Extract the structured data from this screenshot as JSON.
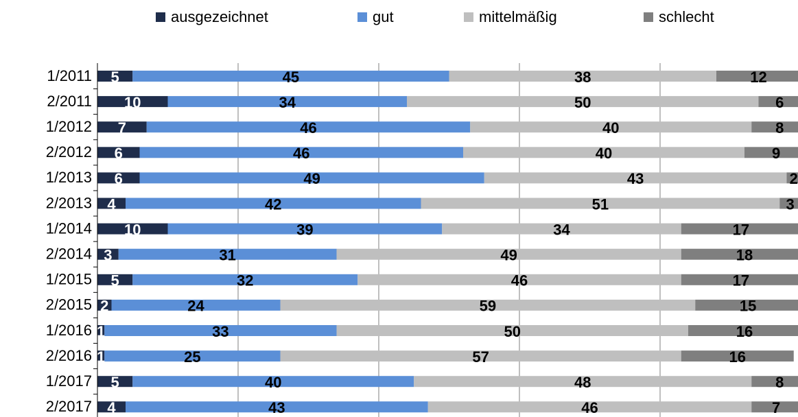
{
  "chart_data": {
    "type": "stacked-barh",
    "categories": [
      "1/2011",
      "2/2011",
      "1/2012",
      "2/2012",
      "1/2013",
      "2/2013",
      "1/2014",
      "2/2014",
      "1/2015",
      "2/2015",
      "1/2016",
      "2/2016",
      "1/2017",
      "2/2017"
    ],
    "series": [
      {
        "name": "ausgezeichnet",
        "color": "#1f2d4b",
        "values": [
          5,
          10,
          7,
          6,
          6,
          4,
          10,
          3,
          5,
          2,
          1,
          1,
          5,
          4
        ]
      },
      {
        "name": "gut",
        "color": "#5b8fd7",
        "values": [
          45,
          34,
          46,
          46,
          49,
          42,
          39,
          31,
          32,
          24,
          33,
          25,
          40,
          43
        ]
      },
      {
        "name": "mittelmäßig",
        "color": "#bfbfbf",
        "values": [
          38,
          50,
          40,
          40,
          43,
          51,
          34,
          49,
          46,
          59,
          50,
          57,
          48,
          46
        ]
      },
      {
        "name": "schlecht",
        "color": "#7f7f7f",
        "values": [
          12,
          6,
          8,
          9,
          2,
          3,
          17,
          18,
          17,
          15,
          16,
          16,
          8,
          7
        ]
      }
    ],
    "xlim": [
      0,
      100
    ],
    "xticks": [
      0,
      20,
      40,
      60,
      80,
      100
    ],
    "grid": true,
    "legend": "top"
  }
}
